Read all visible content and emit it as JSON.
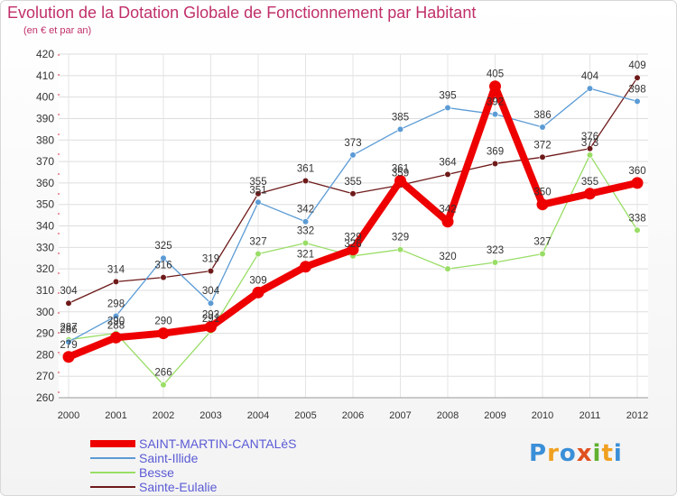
{
  "title": "Evolution de la Dotation Globale de Fonctionnement par Habitant",
  "subtitle": "(en € et par an)",
  "logo_text": "Proxiti",
  "chart_data": {
    "type": "line",
    "x": [
      "2000",
      "2001",
      "2002",
      "2003",
      "2004",
      "2005",
      "2006",
      "2007",
      "2008",
      "2009",
      "2010",
      "2011",
      "2012"
    ],
    "ylim": [
      260,
      420
    ],
    "yticks": [
      260,
      270,
      280,
      290,
      300,
      310,
      320,
      330,
      340,
      350,
      360,
      370,
      380,
      390,
      400,
      410,
      420
    ],
    "grid": true,
    "legend_position": "bottom-left",
    "series": [
      {
        "name": "Sainte-Eulalie",
        "color": "#6e1a1a",
        "values": [
          304,
          314,
          316,
          319,
          355,
          361,
          355,
          359,
          364,
          369,
          372,
          376,
          409
        ]
      },
      {
        "name": "Besse",
        "color": "#99dd66",
        "values": [
          287,
          290,
          266,
          291,
          327,
          332,
          326,
          329,
          320,
          323,
          327,
          373,
          338
        ]
      },
      {
        "name": "Saint-Illide",
        "color": "#5b9bd5",
        "values": [
          286,
          298,
          325,
          304,
          351,
          342,
          373,
          385,
          395,
          392,
          386,
          404,
          398
        ]
      },
      {
        "name": "SAINT-MARTIN-CANTALèS",
        "color": "#ee0000",
        "values": [
          279,
          288,
          290,
          293,
          309,
          321,
          329,
          361,
          342,
          405,
          350,
          355,
          360
        ]
      }
    ]
  }
}
